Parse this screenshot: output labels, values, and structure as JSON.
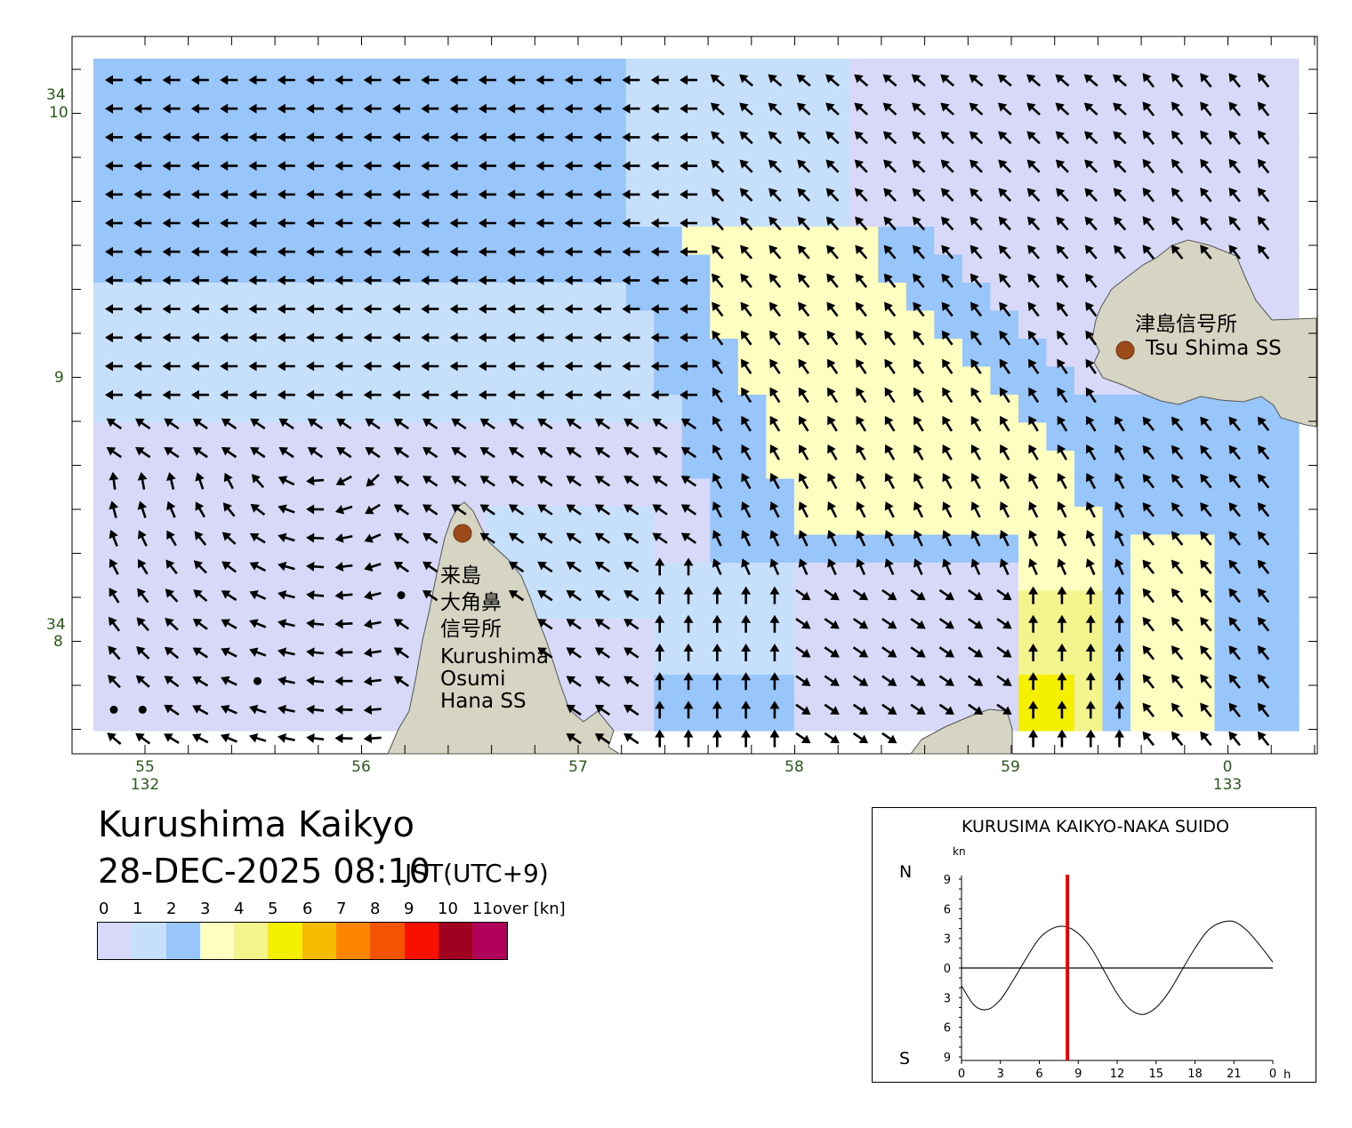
{
  "map": {
    "region": "Kurushima Kaikyo",
    "lat_labels": [
      {
        "deg": "34",
        "min": "10",
        "prime": "′"
      },
      {
        "deg": "",
        "min": "9",
        "prime": "′"
      },
      {
        "deg": "34",
        "min": "8",
        "prime": "′"
      }
    ],
    "lon_labels": [
      {
        "min": "55",
        "deg": "132"
      },
      {
        "min": "56",
        "deg": ""
      },
      {
        "min": "57",
        "deg": ""
      },
      {
        "min": "58",
        "deg": ""
      },
      {
        "min": "59",
        "deg": ""
      },
      {
        "min": "0",
        "deg": "133"
      }
    ],
    "stations": [
      {
        "name_ja": "津島信号所",
        "name_en": "Tsu Shima SS"
      },
      {
        "name_ja_lines": [
          "来島",
          "大角鼻",
          "信号所"
        ],
        "name_en_lines": [
          "Kurushima",
          "Osumi",
          "Hana SS"
        ]
      }
    ],
    "colors": {
      "land": "#d6d4c3",
      "station_marker": "#9c4a1a",
      "axis_labels": "#2a5a1a",
      "arrows": "#000000"
    }
  },
  "header": {
    "title": "Kurushima Kaikyo",
    "datetime": "28-DEC-2025 08:10",
    "timezone": "JST(UTC+9)"
  },
  "legend": {
    "labels": [
      "0",
      "1",
      "2",
      "3",
      "4",
      "5",
      "6",
      "7",
      "8",
      "9",
      "10",
      "11over [kn]"
    ],
    "colors": [
      "#d8d8f8",
      "#c6e0fc",
      "#98c6fa",
      "#fefec0",
      "#f4f48c",
      "#f4f000",
      "#f6bc00",
      "#fc8600",
      "#f45400",
      "#fa1000",
      "#a00020",
      "#b0005a"
    ]
  },
  "tide_chart": {
    "title": "KURUSIMA KAIKYO-NAKA SUIDO",
    "unit": "kn",
    "north_label": "N",
    "south_label": "S",
    "hour_unit": "h",
    "y_ticks": [
      "9",
      "6",
      "3",
      "0",
      "3",
      "6",
      "9"
    ],
    "x_ticks": [
      "0",
      "3",
      "6",
      "9",
      "12",
      "15",
      "18",
      "21",
      "0"
    ],
    "current_hour": 8.17,
    "marker_color": "#ee0000"
  },
  "chart_data": {
    "type": "line",
    "title": "KURUSIMA KAIKYO-NAKA SUIDO",
    "ylabel": "kn",
    "xlabel": "h",
    "xlim": [
      0,
      24
    ],
    "ylim": [
      -9,
      9
    ],
    "series": [
      {
        "x": [
          0,
          1,
          2,
          3,
          4,
          5,
          6,
          7,
          8,
          9,
          10,
          11,
          12,
          13,
          14,
          15,
          16,
          17,
          18,
          19,
          20,
          21,
          22,
          23,
          24
        ],
        "values": [
          -1.8,
          -3.8,
          -4.2,
          -3.2,
          -1.2,
          1.0,
          3.0,
          4.0,
          4.2,
          3.5,
          2.0,
          -0.3,
          -2.6,
          -4.2,
          -4.7,
          -4.0,
          -2.4,
          -0.2,
          2.0,
          3.8,
          4.6,
          4.7,
          3.8,
          2.3,
          0.6
        ]
      }
    ]
  }
}
